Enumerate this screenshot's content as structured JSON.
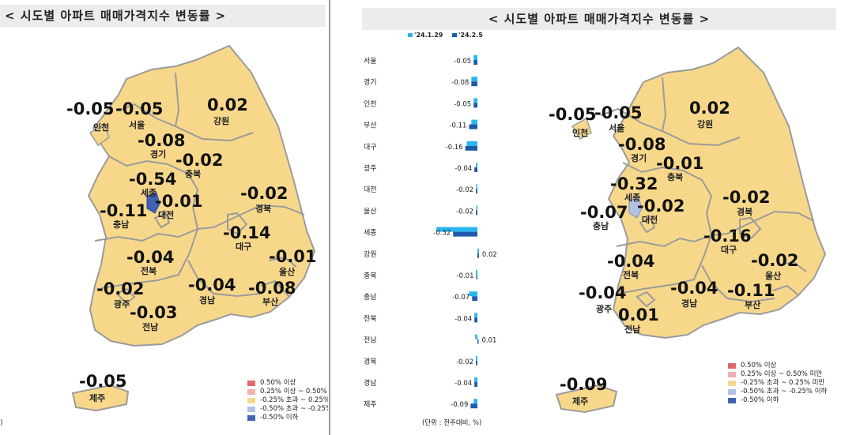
{
  "map_title": "< 시도별 아파트 매매가격지수 변동률 >",
  "colors": {
    "land": "#f7d88b",
    "border": "#9b9b9b",
    "sejong_dark": "#3f62b5",
    "sejong_light": "#b3c1e3",
    "bar_prev": "#29b6ee",
    "bar_curr": "#1e5ba8"
  },
  "left_map": {
    "labels": {
      "incheon": {
        "value": "-0.05",
        "name": "인천"
      },
      "seoul": {
        "value": "-0.05",
        "name": "서울"
      },
      "gangwon": {
        "value": "0.02",
        "name": "강원"
      },
      "gyeonggi": {
        "value": "-0.08",
        "name": "경기"
      },
      "chungbuk": {
        "value": "-0.02",
        "name": "충북"
      },
      "sejong": {
        "value": "-0.54",
        "name": "세종"
      },
      "daejeon": {
        "value": "-0.01",
        "name": "대전"
      },
      "chungnam": {
        "value": "-0.11",
        "name": "충남"
      },
      "gyeongbuk": {
        "value": "-0.02",
        "name": "경북"
      },
      "daegu": {
        "value": "-0.14",
        "name": "대구"
      },
      "ulsan": {
        "value": "-0.01",
        "name": "울산"
      },
      "jeonbuk": {
        "value": "-0.04",
        "name": "전북"
      },
      "gwangju": {
        "value": "-0.02",
        "name": "광주"
      },
      "gyeongnam": {
        "value": "-0.04",
        "name": "경남"
      },
      "busan": {
        "value": "-0.08",
        "name": "부산"
      },
      "jeonnam": {
        "value": "-0.03",
        "name": "전남"
      },
      "jeju": {
        "value": "-0.05",
        "name": "제주"
      }
    },
    "legend": [
      {
        "label": "0.50% 이상",
        "color": "#e06a6a"
      },
      {
        "label": "0.25% 이상 ~ 0.50%",
        "color": "#f2b0b0"
      },
      {
        "label": "-0.25% 초과 ~ 0.25%",
        "color": "#f7d88b"
      },
      {
        "label": "-0.50% 초과 ~ -0.25%",
        "color": "#b3c1e3"
      },
      {
        "label": "-0.50% 이하",
        "color": "#3f62b5"
      }
    ],
    "footnote": ")"
  },
  "right_map": {
    "labels": {
      "incheon": {
        "value": "-0.05",
        "name": "인천"
      },
      "seoul": {
        "value": "-0.05",
        "name": "서울"
      },
      "gangwon": {
        "value": "0.02",
        "name": "강원"
      },
      "gyeonggi": {
        "value": "-0.08",
        "name": "경기"
      },
      "chungbuk": {
        "value": "-0.01",
        "name": "충북"
      },
      "sejong": {
        "value": "-0.32",
        "name": "세종"
      },
      "daejeon": {
        "value": "-0.02",
        "name": "대전"
      },
      "chungnam": {
        "value": "-0.07",
        "name": "충남"
      },
      "gyeongbuk": {
        "value": "-0.02",
        "name": "경북"
      },
      "daegu": {
        "value": "-0.16",
        "name": "대구"
      },
      "ulsan": {
        "value": "-0.02",
        "name": "울산"
      },
      "jeonbuk": {
        "value": "-0.04",
        "name": "전북"
      },
      "gwangju": {
        "value": "-0.04",
        "name": "광주"
      },
      "gyeongnam": {
        "value": "-0.04",
        "name": "경남"
      },
      "busan": {
        "value": "-0.11",
        "name": "부산"
      },
      "jeonnam": {
        "value": "0.01",
        "name": "전남"
      },
      "jeju": {
        "value": "-0.09",
        "name": "제주"
      }
    },
    "legend": [
      {
        "label": "0.50% 이상",
        "color": "#e06a6a"
      },
      {
        "label": "0.25% 이상 ~ 0.50% 미만",
        "color": "#f2b0b0"
      },
      {
        "label": "-0.25% 초과 ~ 0.25% 미만",
        "color": "#f7d88b"
      },
      {
        "label": "-0.50% 초과 ~ -0.25% 이하",
        "color": "#b3c1e3"
      },
      {
        "label": "-0.50% 이하",
        "color": "#3f62b5"
      }
    ]
  },
  "chart_data": {
    "type": "bar",
    "orientation": "horizontal",
    "categories": [
      "서울",
      "경기",
      "인천",
      "부산",
      "대구",
      "광주",
      "대전",
      "울산",
      "세종",
      "강원",
      "충북",
      "충남",
      "전북",
      "전남",
      "경북",
      "경남",
      "제주"
    ],
    "series": [
      {
        "name": "'24.1.29",
        "values": [
          -0.05,
          -0.08,
          -0.05,
          -0.08,
          -0.14,
          -0.02,
          -0.01,
          -0.01,
          -0.54,
          0.02,
          -0.02,
          -0.11,
          -0.04,
          -0.03,
          -0.02,
          -0.04,
          -0.05
        ]
      },
      {
        "name": "'24.2.5",
        "values": [
          -0.05,
          -0.08,
          -0.05,
          -0.11,
          -0.16,
          -0.04,
          -0.02,
          -0.02,
          -0.32,
          0.02,
          -0.01,
          -0.07,
          -0.04,
          0.01,
          -0.02,
          -0.04,
          -0.09
        ]
      }
    ],
    "data_labels": [
      "-0.05",
      "-0.08",
      "-0.05",
      "-0.11",
      "-0.16",
      "-0.04",
      "-0.02",
      "-0.02",
      "-0.32",
      "0.02",
      "-0.01",
      "-0.07",
      "-0.04",
      "0.01",
      "-0.02",
      "-0.04",
      "-0.09"
    ],
    "unit_note": "(단위 : 전주대비, %)",
    "legend_position": "top",
    "grid": false
  }
}
